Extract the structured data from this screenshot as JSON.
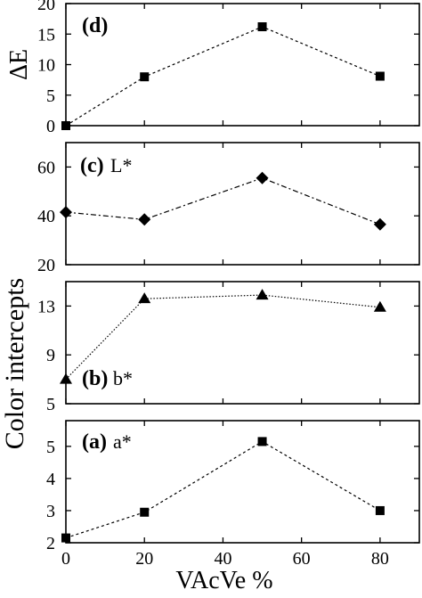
{
  "figure": {
    "ylabel_shared": "Color intercepts",
    "xlabel": "VAcVe %",
    "x_ticks": [
      "0",
      "20",
      "40",
      "60",
      "80"
    ]
  },
  "chart_data": [
    {
      "type": "line",
      "panel": "d",
      "panel_label": "(d)",
      "series_label": "",
      "ylabel": "ΔE",
      "marker": "square",
      "line_style": "dotted",
      "x": [
        0,
        20,
        50,
        80
      ],
      "values": [
        0,
        8,
        16.2,
        8.1
      ],
      "xlim": [
        0,
        90
      ],
      "ylim": [
        0,
        20
      ],
      "y_ticks": [
        "0",
        "5",
        "10",
        "15",
        "20"
      ]
    },
    {
      "type": "line",
      "panel": "c",
      "panel_label": "(c)",
      "series_label": "L*",
      "ylabel": "",
      "marker": "diamond",
      "line_style": "dashdot",
      "x": [
        0,
        20,
        50,
        80
      ],
      "values": [
        41.5,
        38.5,
        55.5,
        36.5
      ],
      "xlim": [
        0,
        90
      ],
      "ylim": [
        20,
        70
      ],
      "y_ticks": [
        "20",
        "40",
        "60"
      ]
    },
    {
      "type": "line",
      "panel": "b",
      "panel_label": "(b)",
      "series_label": "b*",
      "ylabel": "",
      "marker": "triangle",
      "line_style": "dotted-fine",
      "x": [
        0,
        20,
        50,
        80
      ],
      "values": [
        7.0,
        13.6,
        13.9,
        12.9
      ],
      "xlim": [
        0,
        90
      ],
      "ylim": [
        5,
        15
      ],
      "y_ticks": [
        "5",
        "9",
        "13"
      ]
    },
    {
      "type": "line",
      "panel": "a",
      "panel_label": "(a)",
      "series_label": "a*",
      "ylabel": "",
      "marker": "square",
      "line_style": "dotted",
      "x": [
        0,
        20,
        50,
        80
      ],
      "values": [
        2.15,
        2.95,
        5.15,
        3.0
      ],
      "xlim": [
        0,
        90
      ],
      "ylim": [
        2,
        5.8
      ],
      "y_ticks": [
        "2",
        "3",
        "4",
        "5"
      ]
    }
  ]
}
